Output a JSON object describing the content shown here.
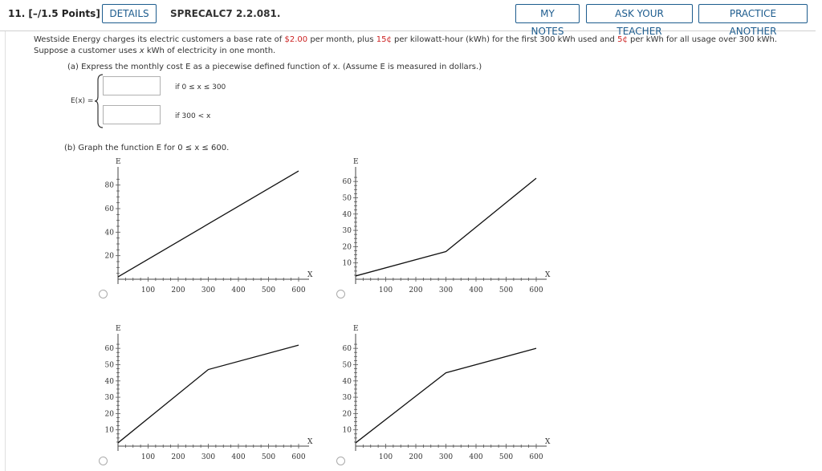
{
  "header": {
    "question_number": "11.  [–/1.5 Points]",
    "details_label": "DETAILS",
    "question_code": "SPRECALC7 2.2.081.",
    "my_notes_label": "MY NOTES",
    "ask_teacher_label": "ASK YOUR TEACHER",
    "practice_label": "PRACTICE ANOTHER"
  },
  "prompt": {
    "t1": "Westside Energy charges its electric customers a base rate of ",
    "v1": "$2.00",
    "t2": " per month, plus ",
    "v2": "15¢",
    "t3": " per kilowatt-hour (kWh) for the first 300 kWh used and ",
    "v3": "5¢",
    "t4": " per kWh for all usage over 300 kWh. Suppose a customer uses ",
    "var": "x",
    "t5": " kWh of electricity in one month."
  },
  "part_a": {
    "text": "(a) Express the monthly cost E as a piecewise defined function of x. (Assume E is measured in dollars.)",
    "lhs": "E(x) =",
    "cond1": "if 0 ≤ x ≤ 300",
    "cond2": "if 300 < x",
    "answer1": "",
    "answer2": ""
  },
  "part_b": {
    "text": "(b) Graph the function E for  0 ≤ x ≤ 600."
  },
  "chart_data": [
    {
      "type": "line",
      "xlabel": "x",
      "ylabel": "E",
      "x_ticks": [
        100,
        200,
        300,
        400,
        500,
        600
      ],
      "y_ticks": [
        20,
        40,
        60,
        80
      ],
      "xlim": [
        0,
        600
      ],
      "ylim": [
        0,
        90
      ],
      "points": [
        [
          0,
          2
        ],
        [
          600,
          92
        ]
      ]
    },
    {
      "type": "line",
      "xlabel": "x",
      "ylabel": "E",
      "x_ticks": [
        100,
        200,
        300,
        400,
        500,
        600
      ],
      "y_ticks": [
        10,
        20,
        30,
        40,
        50,
        60
      ],
      "xlim": [
        0,
        600
      ],
      "ylim": [
        0,
        65
      ],
      "points": [
        [
          0,
          2
        ],
        [
          300,
          17
        ],
        [
          600,
          62
        ]
      ]
    },
    {
      "type": "line",
      "xlabel": "x",
      "ylabel": "E",
      "x_ticks": [
        100,
        200,
        300,
        400,
        500,
        600
      ],
      "y_ticks": [
        10,
        20,
        30,
        40,
        50,
        60
      ],
      "xlim": [
        0,
        600
      ],
      "ylim": [
        0,
        65
      ],
      "points": [
        [
          0,
          2
        ],
        [
          300,
          47
        ],
        [
          600,
          62
        ]
      ]
    },
    {
      "type": "line",
      "xlabel": "x",
      "ylabel": "E",
      "x_ticks": [
        100,
        200,
        300,
        400,
        500,
        600
      ],
      "y_ticks": [
        10,
        20,
        30,
        40,
        50,
        60
      ],
      "xlim": [
        0,
        600
      ],
      "ylim": [
        0,
        65
      ],
      "points": [
        [
          0,
          2
        ],
        [
          300,
          45
        ],
        [
          600,
          60
        ]
      ]
    }
  ]
}
